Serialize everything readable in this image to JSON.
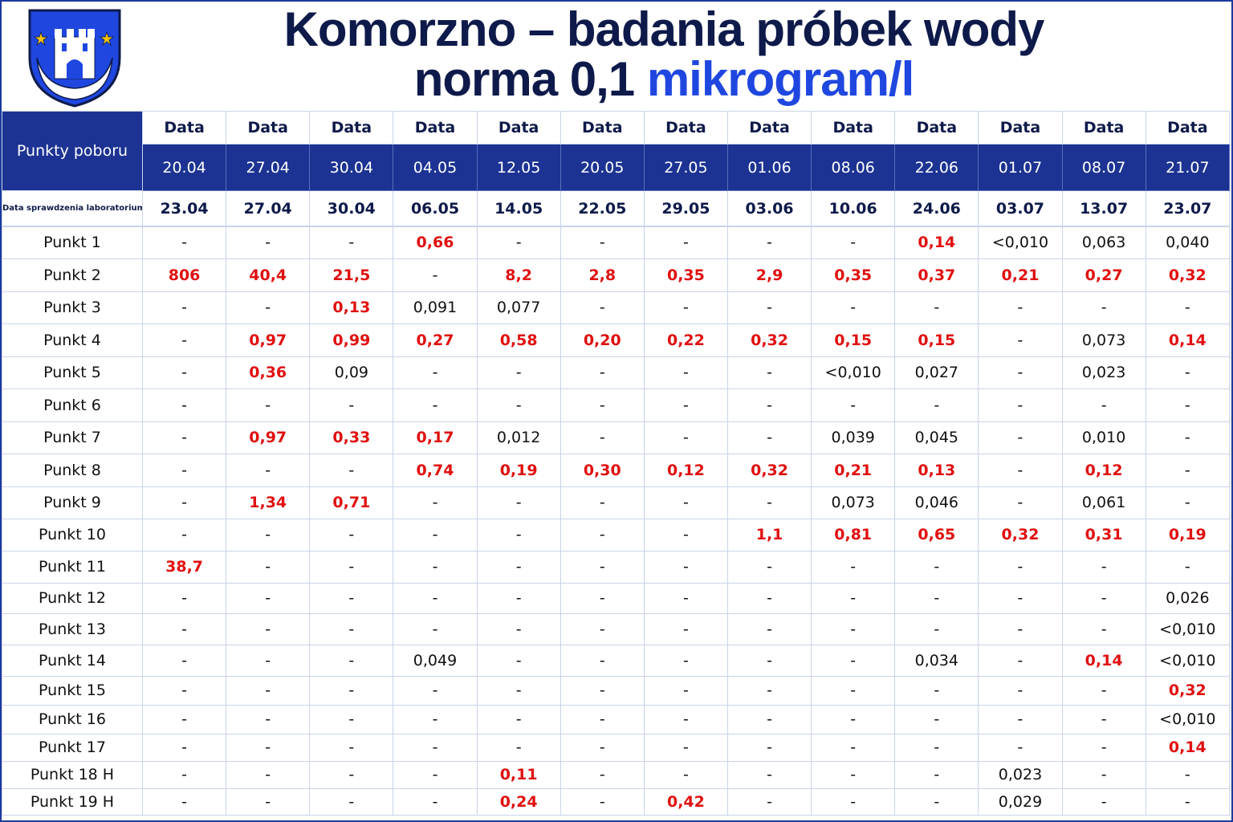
{
  "header": {
    "title_line1": "Komorzno – badania próbek wody",
    "title_line2_prefix": "norma 0,1 ",
    "title_line2_unit": "mikrogram/l"
  },
  "colors": {
    "header_blue": "#1c3393",
    "title_dark": "#0e1a4a",
    "unit_blue": "#1f47e0",
    "exceed_red": "#e01010"
  },
  "table": {
    "row_header_label": "Punkty poboru",
    "date_label": "Data",
    "lab_check_label": "Data sprawdzenia laboratorium",
    "sample_dates": [
      "20.04",
      "27.04",
      "30.04",
      "04.05",
      "12.05",
      "20.05",
      "27.05",
      "01.06",
      "08.06",
      "22.06",
      "01.07",
      "08.07",
      "21.07"
    ],
    "lab_dates": [
      "23.04",
      "27.04",
      "30.04",
      "06.05",
      "14.05",
      "22.05",
      "29.05",
      "03.06",
      "10.06",
      "24.06",
      "03.07",
      "13.07",
      "23.07"
    ],
    "rows": [
      {
        "label": "Punkt 1",
        "values": [
          "-",
          "-",
          "-",
          "0,66",
          "-",
          "-",
          "-",
          "-",
          "-",
          "0,14",
          "<0,010",
          "0,063",
          "0,040"
        ]
      },
      {
        "label": "Punkt 2",
        "values": [
          "806",
          "40,4",
          "21,5",
          "-",
          "8,2",
          "2,8",
          "0,35",
          "2,9",
          "0,35",
          "0,37",
          "0,21",
          "0,27",
          "0,32"
        ]
      },
      {
        "label": "Punkt 3",
        "values": [
          "-",
          "-",
          "0,13",
          "0,091",
          "0,077",
          "-",
          "-",
          "-",
          "-",
          "-",
          "-",
          "-",
          "-"
        ]
      },
      {
        "label": "Punkt 4",
        "values": [
          "-",
          "0,97",
          "0,99",
          "0,27",
          "0,58",
          "0,20",
          "0,22",
          "0,32",
          "0,15",
          "0,15",
          "-",
          "0,073",
          "0,14"
        ]
      },
      {
        "label": "Punkt 5",
        "values": [
          "-",
          "0,36",
          "0,09",
          "-",
          "-",
          "-",
          "-",
          "-",
          "<0,010",
          "0,027",
          "-",
          "0,023",
          "-"
        ]
      },
      {
        "label": "Punkt 6",
        "values": [
          "-",
          "-",
          "-",
          "-",
          "-",
          "-",
          "-",
          "-",
          "-",
          "-",
          "-",
          "-",
          "-"
        ]
      },
      {
        "label": "Punkt 7",
        "values": [
          "-",
          "0,97",
          "0,33",
          "0,17",
          "0,012",
          "-",
          "-",
          "-",
          "0,039",
          "0,045",
          "-",
          "0,010",
          "-"
        ]
      },
      {
        "label": "Punkt 8",
        "values": [
          "-",
          "-",
          "-",
          "0,74",
          "0,19",
          "0,30",
          "0,12",
          "0,32",
          "0,21",
          "0,13",
          "-",
          "0,12",
          "-"
        ]
      },
      {
        "label": "Punkt 9",
        "values": [
          "-",
          "1,34",
          "0,71",
          "-",
          "-",
          "-",
          "-",
          "-",
          "0,073",
          "0,046",
          "-",
          "0,061",
          "-"
        ]
      },
      {
        "label": "Punkt 10",
        "values": [
          "-",
          "-",
          "-",
          "-",
          "-",
          "-",
          "-",
          "1,1",
          "0,81",
          "0,65",
          "0,32",
          "0,31",
          "0,19"
        ]
      },
      {
        "label": "Punkt 11",
        "values": [
          "38,7",
          "-",
          "-",
          "-",
          "-",
          "-",
          "-",
          "-",
          "-",
          "-",
          "-",
          "-",
          "-"
        ]
      },
      {
        "label": "Punkt 12",
        "values": [
          "-",
          "-",
          "-",
          "-",
          "-",
          "-",
          "-",
          "-",
          "-",
          "-",
          "-",
          "-",
          "0,026"
        ]
      },
      {
        "label": "Punkt 13",
        "values": [
          "-",
          "-",
          "-",
          "-",
          "-",
          "-",
          "-",
          "-",
          "-",
          "-",
          "-",
          "-",
          "<0,010"
        ]
      },
      {
        "label": "Punkt 14",
        "values": [
          "-",
          "-",
          "-",
          "0,049",
          "-",
          "-",
          "-",
          "-",
          "-",
          "0,034",
          "-",
          "0,14",
          "<0,010"
        ]
      },
      {
        "label": "Punkt 15",
        "values": [
          "-",
          "-",
          "-",
          "-",
          "-",
          "-",
          "-",
          "-",
          "-",
          "-",
          "-",
          "-",
          "0,32"
        ]
      },
      {
        "label": "Punkt 16",
        "values": [
          "-",
          "-",
          "-",
          "-",
          "-",
          "-",
          "-",
          "-",
          "-",
          "-",
          "-",
          "-",
          "<0,010"
        ]
      },
      {
        "label": "Punkt 17",
        "values": [
          "-",
          "-",
          "-",
          "-",
          "-",
          "-",
          "-",
          "-",
          "-",
          "-",
          "-",
          "-",
          "0,14"
        ]
      },
      {
        "label": "Punkt 18 H",
        "values": [
          "-",
          "-",
          "-",
          "-",
          "0,11",
          "-",
          "-",
          "-",
          "-",
          "-",
          "0,023",
          "-",
          "-"
        ]
      },
      {
        "label": "Punkt 19 H",
        "values": [
          "-",
          "-",
          "-",
          "-",
          "0,24",
          "-",
          "0,42",
          "-",
          "-",
          "-",
          "0,029",
          "-",
          "-"
        ]
      }
    ],
    "red_cells": [
      [
        0,
        3
      ],
      [
        0,
        9
      ],
      [
        1,
        0
      ],
      [
        1,
        1
      ],
      [
        1,
        2
      ],
      [
        1,
        4
      ],
      [
        1,
        5
      ],
      [
        1,
        6
      ],
      [
        1,
        7
      ],
      [
        1,
        8
      ],
      [
        1,
        9
      ],
      [
        1,
        10
      ],
      [
        1,
        11
      ],
      [
        1,
        12
      ],
      [
        2,
        2
      ],
      [
        3,
        1
      ],
      [
        3,
        2
      ],
      [
        3,
        3
      ],
      [
        3,
        4
      ],
      [
        3,
        5
      ],
      [
        3,
        6
      ],
      [
        3,
        7
      ],
      [
        3,
        8
      ],
      [
        3,
        9
      ],
      [
        3,
        12
      ],
      [
        4,
        1
      ],
      [
        6,
        1
      ],
      [
        6,
        2
      ],
      [
        6,
        3
      ],
      [
        7,
        3
      ],
      [
        7,
        4
      ],
      [
        7,
        5
      ],
      [
        7,
        6
      ],
      [
        7,
        7
      ],
      [
        7,
        8
      ],
      [
        7,
        9
      ],
      [
        7,
        11
      ],
      [
        8,
        1
      ],
      [
        8,
        2
      ],
      [
        9,
        7
      ],
      [
        9,
        8
      ],
      [
        9,
        9
      ],
      [
        9,
        10
      ],
      [
        9,
        11
      ],
      [
        9,
        12
      ],
      [
        10,
        0
      ],
      [
        13,
        11
      ],
      [
        14,
        12
      ],
      [
        16,
        12
      ],
      [
        17,
        4
      ],
      [
        18,
        4
      ],
      [
        18,
        6
      ]
    ]
  }
}
